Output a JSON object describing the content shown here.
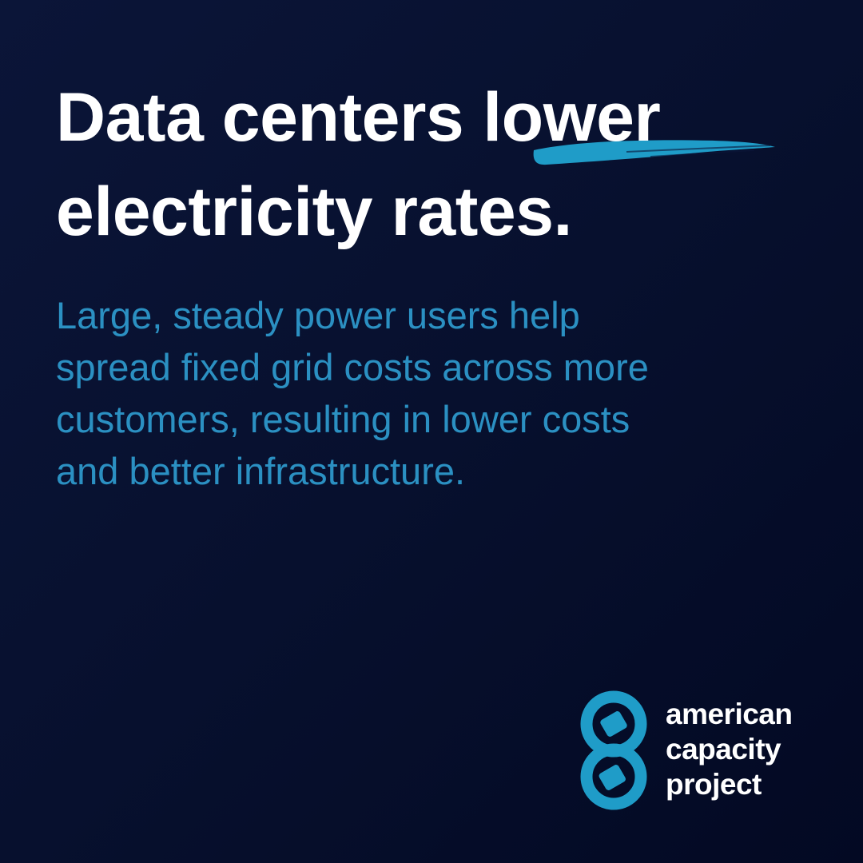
{
  "headline": {
    "line1": "Data centers",
    "highlight": "lower",
    "line2": "electricity rates."
  },
  "body": {
    "lines": [
      "Large, steady power users help",
      "spread fixed grid costs across more",
      "customers, resulting in lower costs",
      "and better infrastructure."
    ]
  },
  "logo": {
    "lines": [
      "american",
      "capacity",
      "project"
    ]
  }
}
